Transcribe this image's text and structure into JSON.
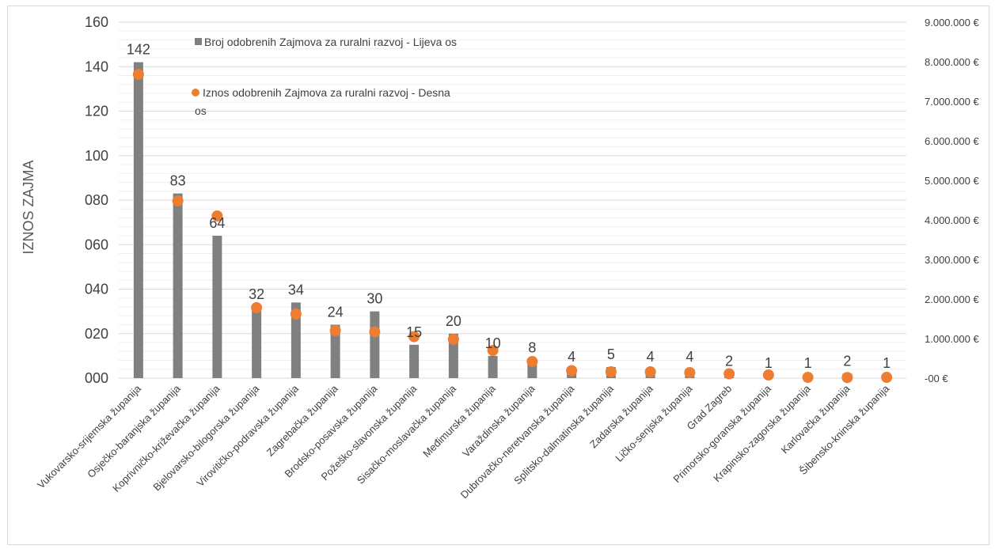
{
  "chart_data": {
    "type": "bar",
    "categories": [
      "Vukovarsko-srijemska županija",
      "Osječko-baranjska županija",
      "Koprivničko-križevačka županija",
      "Bjelovarsko-bilogorska županija",
      "Virovitičko-podravska županija",
      "Zagrebačka županija",
      "Brodsko-posavska županija",
      "Požeško-slavonska županija",
      "Sisačko-moslavačka županija",
      "Međimurska županija",
      "Varaždinska županija",
      "Dubrovačko-neretvanska županija",
      "Splitsko-dalmatinska županija",
      "Zadarska županija",
      "Ličko-senjska županija",
      "Grad Zagreb",
      "Primorsko-goranska županija",
      "Krapinsko-zagorska županija",
      "Karlovačka županija",
      "Šibensko-kninska županija"
    ],
    "series": [
      {
        "name": "Broj odobrenih Zajmova za ruralni razvoj - Lijeva os",
        "type": "bar",
        "axis": "left",
        "color": "#808080",
        "values": [
          142,
          83,
          64,
          32,
          34,
          24,
          30,
          15,
          20,
          10,
          8,
          4,
          5,
          4,
          4,
          2,
          1,
          1,
          2,
          1
        ],
        "labels": [
          "142",
          "83",
          "64",
          "32",
          "34",
          "24",
          "30",
          "15",
          "20",
          "10",
          "8",
          "4",
          "5",
          "4",
          "4",
          "2",
          "1",
          "1",
          "2",
          "1"
        ]
      },
      {
        "name": "Iznos odobrenih Zajmova za ruralni razvoj - Desna os",
        "type": "scatter",
        "axis": "right",
        "color": "#ED7D31",
        "values": [
          7680000,
          4480000,
          4100000,
          1780000,
          1620000,
          1200000,
          1170000,
          1050000,
          980000,
          700000,
          420000,
          190000,
          160000,
          160000,
          140000,
          110000,
          80000,
          20000,
          15000,
          20000
        ]
      }
    ],
    "ylabel": "IZNOS ZAJMA",
    "ylim": [
      0,
      160
    ],
    "y_ticks": [
      "000",
      "020",
      "040",
      "060",
      "080",
      "100",
      "120",
      "140",
      "160"
    ],
    "y2lim": [
      0,
      9000000
    ],
    "y2_ticks": [
      "-00 €",
      "1.000.000 €",
      "2.000.000 €",
      "3.000.000 €",
      "4.000.000 €",
      "5.000.000 €",
      "6.000.000 €",
      "7.000.000 €",
      "8.000.000 €",
      "9.000.000 €"
    ],
    "grid": true,
    "legend_position": "top-left-inside",
    "legend": [
      "Broj odobrenih Zajmova za ruralni razvoj - Lijeva os",
      "Iznos odobrenih Zajmova za ruralni razvoj - Desna os"
    ]
  }
}
